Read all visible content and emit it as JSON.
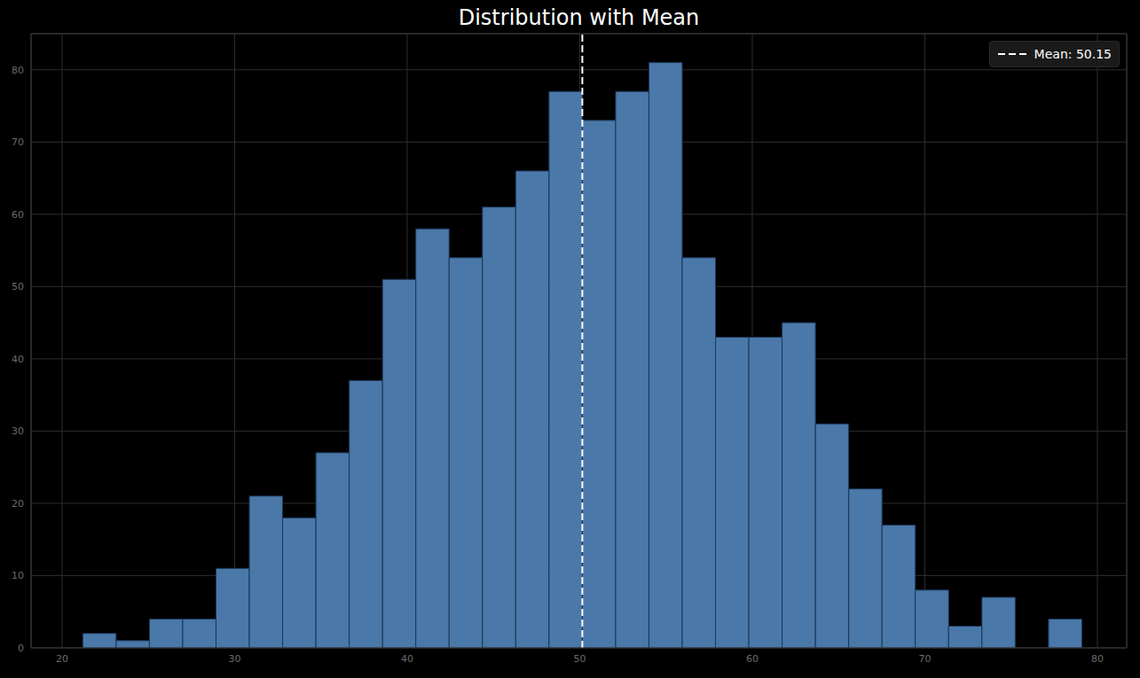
{
  "chart_data": {
    "type": "histogram",
    "title": "Distribution with Mean",
    "bins": [
      21.2,
      23.13,
      25.06,
      26.99,
      28.92,
      30.85,
      32.78,
      34.71,
      36.64,
      38.57,
      40.5,
      42.43,
      44.36,
      46.29,
      48.22,
      50.15,
      52.08,
      54.01,
      55.94,
      57.87,
      59.8,
      61.73,
      63.66,
      65.59,
      67.52,
      69.45,
      71.38,
      73.31,
      75.24,
      77.17,
      79.1
    ],
    "counts": [
      2,
      1,
      4,
      4,
      11,
      21,
      18,
      27,
      37,
      51,
      58,
      54,
      61,
      66,
      77,
      73,
      77,
      81,
      54,
      43,
      43,
      45,
      31,
      22,
      17,
      8,
      3,
      7,
      0,
      4
    ],
    "color": "#4a78a8",
    "xlim": [
      18.2,
      81.7
    ],
    "xticks": [
      20,
      30,
      40,
      50,
      60,
      70,
      80
    ],
    "ylim": [
      0,
      85
    ],
    "yticks": [
      0,
      10,
      20,
      30,
      40,
      50,
      60,
      70,
      80
    ],
    "grid": true,
    "legend": "upper right",
    "annotations": [
      {
        "type": "vline",
        "x": 50.15,
        "label": "Mean: 50.15",
        "color": "#ffffff",
        "line_style": "dashed"
      }
    ]
  }
}
